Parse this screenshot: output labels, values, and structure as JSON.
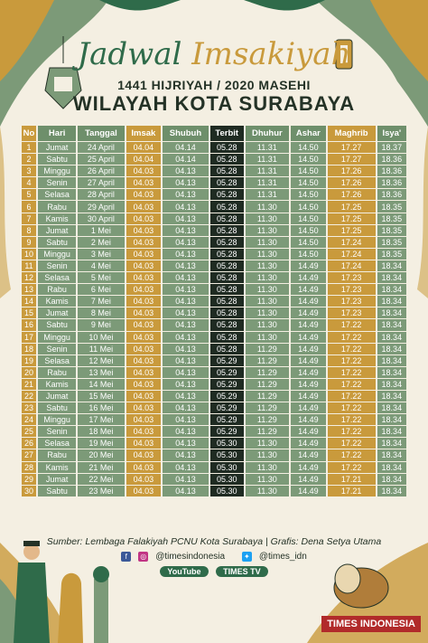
{
  "header": {
    "title_part1": "Jadwal",
    "title_part2": "Imsakiyah",
    "subtitle": "1441 HIJRIYAH / 2020 MASEHI",
    "region": "WILAYAH KOTA SURABAYA"
  },
  "table": {
    "headers": {
      "no": "No",
      "hari": "Hari",
      "tanggal": "Tanggal",
      "imsak": "Imsak",
      "subuh": "Shubuh",
      "terbit": "Terbit",
      "dhuhur": "Dhuhur",
      "ashar": "Ashar",
      "maghrib": "Maghrib",
      "isya": "Isya'"
    },
    "rows": [
      {
        "no": "1",
        "hari": "Jumat",
        "tanggal": "24 April",
        "imsak": "04.04",
        "subuh": "04.14",
        "terbit": "05.28",
        "dhuhur": "11.31",
        "ashar": "14.50",
        "maghrib": "17.27",
        "isya": "18.37"
      },
      {
        "no": "2",
        "hari": "Sabtu",
        "tanggal": "25 April",
        "imsak": "04.04",
        "subuh": "04.14",
        "terbit": "05.28",
        "dhuhur": "11.31",
        "ashar": "14.50",
        "maghrib": "17.27",
        "isya": "18.36"
      },
      {
        "no": "3",
        "hari": "Minggu",
        "tanggal": "26 April",
        "imsak": "04.03",
        "subuh": "04.13",
        "terbit": "05.28",
        "dhuhur": "11.31",
        "ashar": "14.50",
        "maghrib": "17.26",
        "isya": "18.36"
      },
      {
        "no": "4",
        "hari": "Senin",
        "tanggal": "27 April",
        "imsak": "04.03",
        "subuh": "04.13",
        "terbit": "05.28",
        "dhuhur": "11.31",
        "ashar": "14.50",
        "maghrib": "17.26",
        "isya": "18.36"
      },
      {
        "no": "5",
        "hari": "Selasa",
        "tanggal": "28 April",
        "imsak": "04.03",
        "subuh": "04.13",
        "terbit": "05.28",
        "dhuhur": "11.31",
        "ashar": "14.50",
        "maghrib": "17.26",
        "isya": "18.36"
      },
      {
        "no": "6",
        "hari": "Rabu",
        "tanggal": "29 April",
        "imsak": "04.03",
        "subuh": "04.13",
        "terbit": "05.28",
        "dhuhur": "11.30",
        "ashar": "14.50",
        "maghrib": "17.25",
        "isya": "18.35"
      },
      {
        "no": "7",
        "hari": "Kamis",
        "tanggal": "30 April",
        "imsak": "04.03",
        "subuh": "04.13",
        "terbit": "05.28",
        "dhuhur": "11.30",
        "ashar": "14.50",
        "maghrib": "17.25",
        "isya": "18.35"
      },
      {
        "no": "8",
        "hari": "Jumat",
        "tanggal": "1 Mei",
        "imsak": "04.03",
        "subuh": "04.13",
        "terbit": "05.28",
        "dhuhur": "11.30",
        "ashar": "14.50",
        "maghrib": "17.25",
        "isya": "18.35"
      },
      {
        "no": "9",
        "hari": "Sabtu",
        "tanggal": "2 Mei",
        "imsak": "04.03",
        "subuh": "04.13",
        "terbit": "05.28",
        "dhuhur": "11.30",
        "ashar": "14.50",
        "maghrib": "17.24",
        "isya": "18.35"
      },
      {
        "no": "10",
        "hari": "Minggu",
        "tanggal": "3 Mei",
        "imsak": "04.03",
        "subuh": "04.13",
        "terbit": "05.28",
        "dhuhur": "11.30",
        "ashar": "14.50",
        "maghrib": "17.24",
        "isya": "18.35"
      },
      {
        "no": "11",
        "hari": "Senin",
        "tanggal": "4 Mei",
        "imsak": "04.03",
        "subuh": "04.13",
        "terbit": "05.28",
        "dhuhur": "11.30",
        "ashar": "14.49",
        "maghrib": "17.24",
        "isya": "18.34"
      },
      {
        "no": "12",
        "hari": "Selasa",
        "tanggal": "5 Mei",
        "imsak": "04.03",
        "subuh": "04.13",
        "terbit": "05.28",
        "dhuhur": "11.30",
        "ashar": "14.49",
        "maghrib": "17.23",
        "isya": "18.34"
      },
      {
        "no": "13",
        "hari": "Rabu",
        "tanggal": "6 Mei",
        "imsak": "04.03",
        "subuh": "04.13",
        "terbit": "05.28",
        "dhuhur": "11.30",
        "ashar": "14.49",
        "maghrib": "17.23",
        "isya": "18.34"
      },
      {
        "no": "14",
        "hari": "Kamis",
        "tanggal": "7 Mei",
        "imsak": "04.03",
        "subuh": "04.13",
        "terbit": "05.28",
        "dhuhur": "11.30",
        "ashar": "14.49",
        "maghrib": "17.23",
        "isya": "18.34"
      },
      {
        "no": "15",
        "hari": "Jumat",
        "tanggal": "8 Mei",
        "imsak": "04.03",
        "subuh": "04.13",
        "terbit": "05.28",
        "dhuhur": "11.30",
        "ashar": "14.49",
        "maghrib": "17.23",
        "isya": "18.34"
      },
      {
        "no": "16",
        "hari": "Sabtu",
        "tanggal": "9 Mei",
        "imsak": "04.03",
        "subuh": "04.13",
        "terbit": "05.28",
        "dhuhur": "11.30",
        "ashar": "14.49",
        "maghrib": "17.22",
        "isya": "18.34"
      },
      {
        "no": "17",
        "hari": "Minggu",
        "tanggal": "10 Mei",
        "imsak": "04.03",
        "subuh": "04.13",
        "terbit": "05.28",
        "dhuhur": "11.30",
        "ashar": "14.49",
        "maghrib": "17.22",
        "isya": "18.34"
      },
      {
        "no": "18",
        "hari": "Senin",
        "tanggal": "11 Mei",
        "imsak": "04.03",
        "subuh": "04.13",
        "terbit": "05.28",
        "dhuhur": "11.29",
        "ashar": "14.49",
        "maghrib": "17.22",
        "isya": "18.34"
      },
      {
        "no": "19",
        "hari": "Selasa",
        "tanggal": "12 Mei",
        "imsak": "04.03",
        "subuh": "04.13",
        "terbit": "05.29",
        "dhuhur": "11.29",
        "ashar": "14.49",
        "maghrib": "17.22",
        "isya": "18.34"
      },
      {
        "no": "20",
        "hari": "Rabu",
        "tanggal": "13 Mei",
        "imsak": "04.03",
        "subuh": "04.13",
        "terbit": "05.29",
        "dhuhur": "11.29",
        "ashar": "14.49",
        "maghrib": "17.22",
        "isya": "18.34"
      },
      {
        "no": "21",
        "hari": "Kamis",
        "tanggal": "14 Mei",
        "imsak": "04.03",
        "subuh": "04.13",
        "terbit": "05.29",
        "dhuhur": "11.29",
        "ashar": "14.49",
        "maghrib": "17.22",
        "isya": "18.34"
      },
      {
        "no": "22",
        "hari": "Jumat",
        "tanggal": "15 Mei",
        "imsak": "04.03",
        "subuh": "04.13",
        "terbit": "05.29",
        "dhuhur": "11.29",
        "ashar": "14.49",
        "maghrib": "17.22",
        "isya": "18.34"
      },
      {
        "no": "23",
        "hari": "Sabtu",
        "tanggal": "16 Mei",
        "imsak": "04.03",
        "subuh": "04.13",
        "terbit": "05.29",
        "dhuhur": "11.29",
        "ashar": "14.49",
        "maghrib": "17.22",
        "isya": "18.34"
      },
      {
        "no": "24",
        "hari": "Minggu",
        "tanggal": "17 Mei",
        "imsak": "04.03",
        "subuh": "04.13",
        "terbit": "05.29",
        "dhuhur": "11.29",
        "ashar": "14.49",
        "maghrib": "17.22",
        "isya": "18.34"
      },
      {
        "no": "25",
        "hari": "Senin",
        "tanggal": "18 Mei",
        "imsak": "04.03",
        "subuh": "04.13",
        "terbit": "05.29",
        "dhuhur": "11.29",
        "ashar": "14.49",
        "maghrib": "17.22",
        "isya": "18.34"
      },
      {
        "no": "26",
        "hari": "Selasa",
        "tanggal": "19 Mei",
        "imsak": "04.03",
        "subuh": "04.13",
        "terbit": "05.30",
        "dhuhur": "11.30",
        "ashar": "14.49",
        "maghrib": "17.22",
        "isya": "18.34"
      },
      {
        "no": "27",
        "hari": "Rabu",
        "tanggal": "20 Mei",
        "imsak": "04.03",
        "subuh": "04.13",
        "terbit": "05.30",
        "dhuhur": "11.30",
        "ashar": "14.49",
        "maghrib": "17.22",
        "isya": "18.34"
      },
      {
        "no": "28",
        "hari": "Kamis",
        "tanggal": "21 Mei",
        "imsak": "04.03",
        "subuh": "04.13",
        "terbit": "05.30",
        "dhuhur": "11.30",
        "ashar": "14.49",
        "maghrib": "17.22",
        "isya": "18.34"
      },
      {
        "no": "29",
        "hari": "Jumat",
        "tanggal": "22 Mei",
        "imsak": "04.03",
        "subuh": "04.13",
        "terbit": "05.30",
        "dhuhur": "11.30",
        "ashar": "14.49",
        "maghrib": "17.21",
        "isya": "18.34"
      },
      {
        "no": "30",
        "hari": "Sabtu",
        "tanggal": "23 Mei",
        "imsak": "04.03",
        "subuh": "04.13",
        "terbit": "05.30",
        "dhuhur": "11.30",
        "ashar": "14.49",
        "maghrib": "17.21",
        "isya": "18.34"
      }
    ]
  },
  "footer": {
    "source": "Sumber: Lembaga Falakiyah PCNU Kota Surabaya | Grafis: Dena Setya Utama",
    "social_fb_ig": "@timesindonesia",
    "social_twitter": "@times_idn",
    "youtube": "YouTube",
    "timestv": "TIMES TV",
    "badge": "TIMES INDONESIA"
  },
  "colors": {
    "gold": "#c99a3c",
    "green": "#7c9a78",
    "dark": "#1f2b22",
    "title_green": "#2f6b4a"
  }
}
